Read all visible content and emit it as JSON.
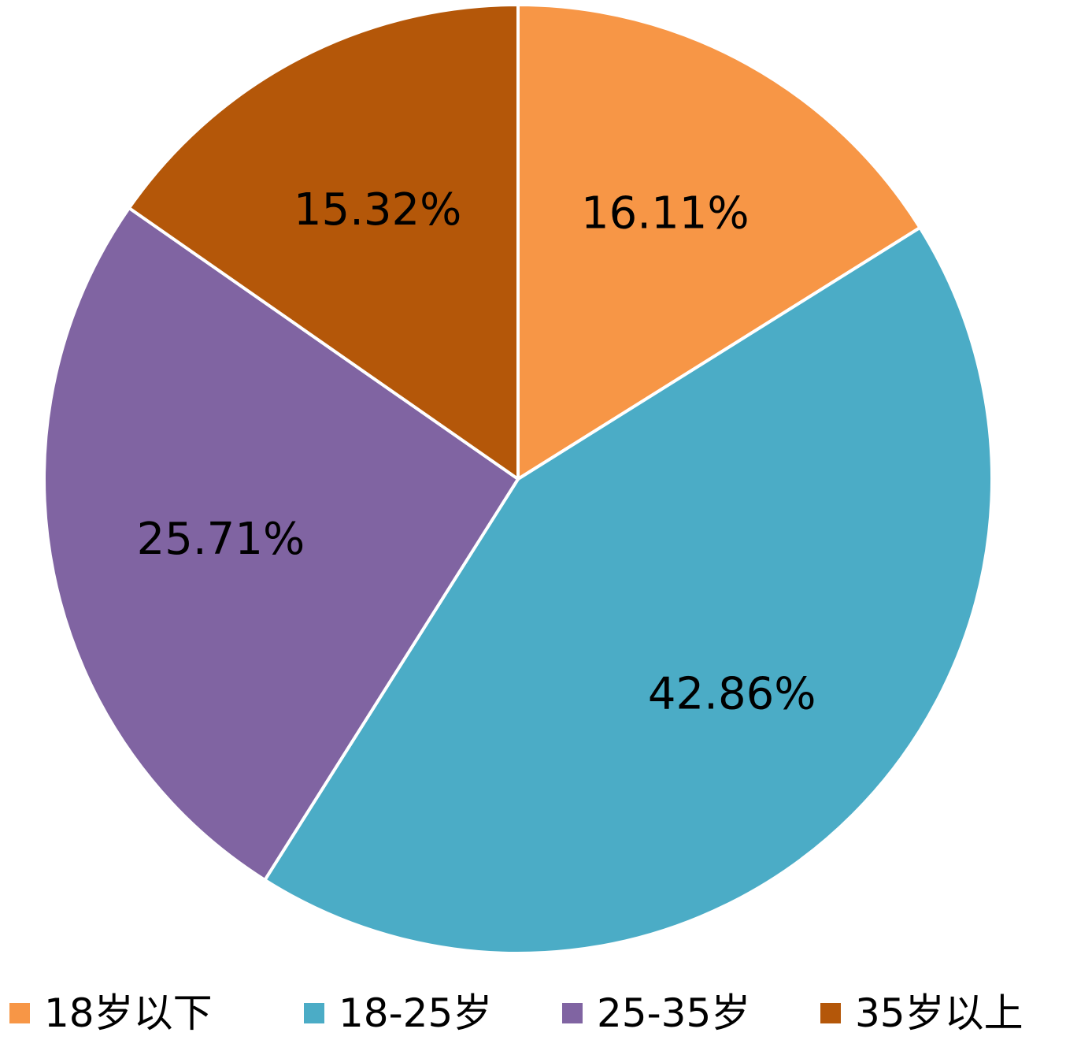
{
  "chart_data": {
    "type": "pie",
    "categories": [
      "18岁以下",
      "18-25岁",
      "25-35岁",
      "35岁以上"
    ],
    "values": [
      16.11,
      42.86,
      25.71,
      15.32
    ],
    "value_labels": [
      "16.11%",
      "42.86%",
      "25.71%",
      "15.32%"
    ],
    "colors": [
      "#F79646",
      "#4BACC6",
      "#8064A2",
      "#B45709"
    ],
    "start_angle": "12 o'clock",
    "direction": "clockwise",
    "legend_position": "bottom",
    "title": ""
  }
}
